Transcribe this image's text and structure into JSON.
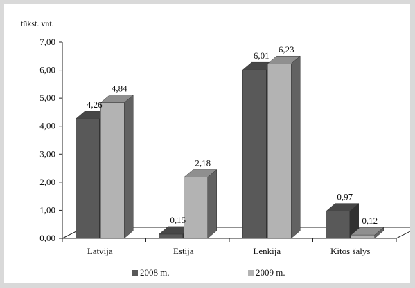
{
  "chart_data": {
    "type": "bar",
    "unit_label": "tūkst. vnt.",
    "categories": [
      "Latvija",
      "Estija",
      "Lenkija",
      "Kitos šalys"
    ],
    "series": [
      {
        "name": "2008 m.",
        "values": [
          4.26,
          0.15,
          6.01,
          0.97
        ],
        "labels": [
          "4,26",
          "0,15",
          "6,01",
          "0,97"
        ],
        "color": "#595959"
      },
      {
        "name": "2009 m.",
        "values": [
          4.84,
          2.18,
          6.23,
          0.12
        ],
        "labels": [
          "4,84",
          "2,18",
          "6,23",
          "0,12"
        ],
        "color": "#b3b3b3"
      }
    ],
    "y_ticks": [
      "0,00",
      "1,00",
      "2,00",
      "3,00",
      "4,00",
      "5,00",
      "6,00",
      "7,00"
    ],
    "ylim": [
      0,
      7
    ],
    "legend_position": "bottom",
    "style": "3d-column",
    "grid": false
  }
}
